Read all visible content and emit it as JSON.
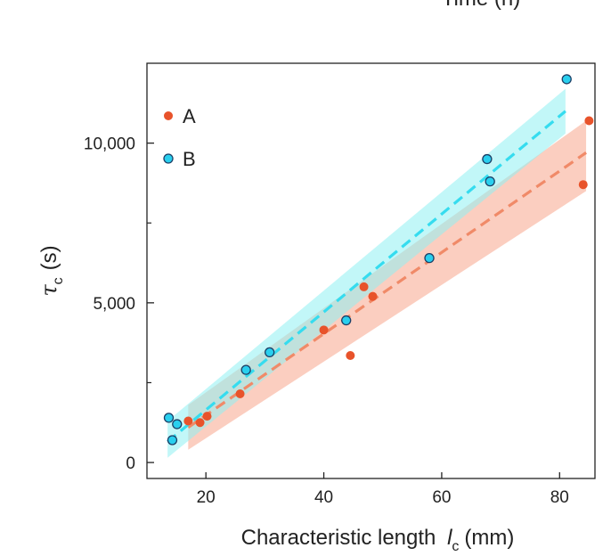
{
  "top_partial_text": "Time (h)",
  "chart_data": {
    "type": "scatter",
    "xlabel": "Characteristic length",
    "xlabel_symbol": "l",
    "xlabel_sub": "c",
    "xlabel_unit": "(mm)",
    "ylabel_symbol": "τ",
    "ylabel_sub": "c",
    "ylabel_unit": "(s)",
    "xlim": [
      10,
      86
    ],
    "ylim": [
      -500,
      12500
    ],
    "xticks": [
      20,
      40,
      60,
      80
    ],
    "xtick_labels": [
      "20",
      "40",
      "60",
      "80"
    ],
    "yticks": [
      0,
      5000,
      10000
    ],
    "ytick_labels": [
      "0",
      "5,000",
      "10,000"
    ],
    "y_minor_ticks": [
      2500,
      7500
    ],
    "legend_position": "upper-left",
    "grid": false,
    "series": [
      {
        "name": "A",
        "color": "#e8532b",
        "fit_color": "#f08a68",
        "band_color": "#f7a58c",
        "x": [
          17,
          19,
          20.2,
          25.8,
          40,
          44.5,
          46.8,
          48.3,
          84,
          85
        ],
        "y": [
          1300,
          1250,
          1450,
          2150,
          4150,
          3350,
          5500,
          5200,
          8700,
          10700
        ],
        "fit": {
          "x0": 17,
          "x1": 84.5,
          "y0": 1100,
          "y1": 9700,
          "band_low0": 400,
          "band_high0": 1800,
          "band_low1": 8500,
          "band_high1": 10700
        }
      },
      {
        "name": "B",
        "color": "#29cfee",
        "fit_color": "#35dcef",
        "band_color": "#8ff0f2",
        "x": [
          13.7,
          14.3,
          15.1,
          26.8,
          30.8,
          43.8,
          57.9,
          67.7,
          68.2,
          81.2
        ],
        "y": [
          1400,
          700,
          1200,
          2900,
          3450,
          4450,
          6400,
          9500,
          8800,
          12000
        ],
        "fit": {
          "x0": 13.5,
          "x1": 81,
          "y0": 650,
          "y1": 11000,
          "band_low0": 150,
          "band_high0": 1300,
          "band_low1": 10300,
          "band_high1": 11700
        }
      }
    ]
  }
}
